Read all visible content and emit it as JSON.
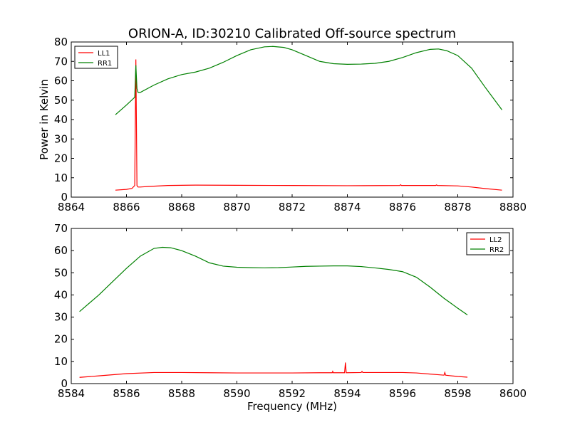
{
  "figure": {
    "title": "ORION-A, ID:30210 Calibrated Off-source spectrum"
  },
  "chart_data": [
    {
      "type": "line",
      "title": "ORION-A, ID:30210 Calibrated Off-source spectrum",
      "xlabel": "",
      "ylabel": "Power in Kelvin",
      "xlim": [
        8864,
        8880
      ],
      "ylim": [
        0,
        80
      ],
      "xticks": [
        "8864",
        "8866",
        "8868",
        "8870",
        "8872",
        "8874",
        "8876",
        "8878",
        "8880"
      ],
      "yticks": [
        "0",
        "10",
        "20",
        "30",
        "40",
        "50",
        "60",
        "70",
        "80"
      ],
      "grid": false,
      "legend_position": "top-left",
      "series": [
        {
          "name": "LL1",
          "color": "#ff0000",
          "x": [
            8865.6,
            8866.0,
            8866.2,
            8866.3,
            8866.34,
            8866.38,
            8866.42,
            8866.5,
            8866.8,
            8867.5,
            8868.5,
            8870,
            8872,
            8874,
            8875.9,
            8875.93,
            8875.96,
            8877.2,
            8877.23,
            8877.26,
            8878,
            8878.5,
            8879.0,
            8879.6
          ],
          "y": [
            3.6,
            4.0,
            4.5,
            6.0,
            71.0,
            6.0,
            5.2,
            5.2,
            5.5,
            6.0,
            6.2,
            6.1,
            6.0,
            5.9,
            6.0,
            6.4,
            6.0,
            6.0,
            6.3,
            6.0,
            5.8,
            5.2,
            4.4,
            3.6
          ]
        },
        {
          "name": "RR1",
          "color": "#008000",
          "x": [
            8865.6,
            8866.0,
            8866.3,
            8866.34,
            8866.38,
            8866.42,
            8866.5,
            8867,
            8867.5,
            8868,
            8868.5,
            8869,
            8869.5,
            8870,
            8870.5,
            8871,
            8871.3,
            8871.7,
            8872,
            8872.5,
            8873,
            8873.5,
            8874,
            8874.5,
            8875,
            8875.5,
            8876,
            8876.5,
            8877,
            8877.3,
            8877.6,
            8878,
            8878.5,
            8879,
            8879.6
          ],
          "y": [
            42.5,
            47.5,
            51.5,
            68.0,
            56.0,
            54.0,
            54.0,
            57.8,
            61.0,
            63.2,
            64.5,
            66.5,
            69.5,
            73.0,
            76.0,
            77.5,
            77.7,
            77.2,
            76.0,
            73.0,
            70.0,
            68.8,
            68.5,
            68.6,
            69.0,
            70.0,
            72.0,
            74.5,
            76.2,
            76.4,
            75.5,
            73.0,
            66.5,
            56.5,
            45.0
          ]
        }
      ]
    },
    {
      "type": "line",
      "title": "",
      "xlabel": "Frequency (MHz)",
      "ylabel": "",
      "xlim": [
        8584,
        8600
      ],
      "ylim": [
        0,
        70
      ],
      "xticks": [
        "8584",
        "8586",
        "8588",
        "8590",
        "8592",
        "8594",
        "8596",
        "8598",
        "8600"
      ],
      "yticks": [
        "0",
        "10",
        "20",
        "30",
        "40",
        "50",
        "60",
        "70"
      ],
      "grid": false,
      "legend_position": "top-right",
      "series": [
        {
          "name": "LL2",
          "color": "#ff0000",
          "x": [
            8584.3,
            8585,
            8586,
            8587,
            8588,
            8589,
            8590,
            8591,
            8592,
            8593,
            8593.45,
            8593.47,
            8593.49,
            8593.9,
            8593.93,
            8593.96,
            8594.5,
            8594.53,
            8594.56,
            8595,
            8596,
            8596.5,
            8597,
            8597.5,
            8597.53,
            8597.56,
            8597.7,
            8598,
            8598.35
          ],
          "y": [
            2.8,
            3.5,
            4.5,
            5.0,
            5.0,
            4.9,
            4.8,
            4.8,
            4.8,
            4.9,
            4.9,
            5.5,
            4.9,
            4.9,
            9.5,
            4.9,
            5.0,
            5.5,
            5.0,
            5.0,
            5.0,
            4.8,
            4.3,
            3.8,
            5.0,
            3.8,
            3.6,
            3.2,
            2.9
          ]
        },
        {
          "name": "RR2",
          "color": "#008000",
          "x": [
            8584.3,
            8585,
            8585.5,
            8586,
            8586.5,
            8587,
            8587.3,
            8587.6,
            8588,
            8588.5,
            8589,
            8589.5,
            8590,
            8590.5,
            8591,
            8591.5,
            8592,
            8592.5,
            8593,
            8593.5,
            8594,
            8594.5,
            8595,
            8595.5,
            8596,
            8596.5,
            8597,
            8597.5,
            8598,
            8598.35
          ],
          "y": [
            32.5,
            40.0,
            46.0,
            52.0,
            57.5,
            61.0,
            61.5,
            61.3,
            60.0,
            57.5,
            54.5,
            53.0,
            52.5,
            52.3,
            52.2,
            52.3,
            52.6,
            52.9,
            53.0,
            53.1,
            53.1,
            52.8,
            52.2,
            51.5,
            50.5,
            48.0,
            43.5,
            38.5,
            34.0,
            31.0
          ]
        }
      ]
    }
  ]
}
